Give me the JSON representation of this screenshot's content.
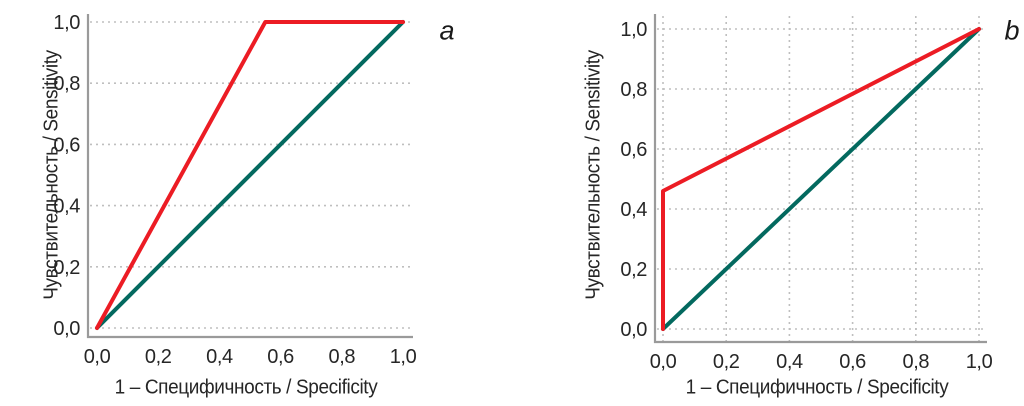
{
  "colors": {
    "roc_red": "#ec1c24",
    "diagonal_teal": "#03695f",
    "grid": "#bfbfbf",
    "axis": "#9a9a9a",
    "text": "#262626"
  },
  "chart_data": [
    {
      "panel_label": "a",
      "type": "line",
      "title": "",
      "xlabel": "1 – Специфичность / Specificity",
      "ylabel": "Чувствительность / Sensitivity",
      "xlim": [
        0,
        1
      ],
      "ylim": [
        0,
        1
      ],
      "tick_values": [
        0,
        0.2,
        0.4,
        0.6,
        0.8,
        1.0
      ],
      "x_tick_labels": [
        "0,0",
        "0,2",
        "0,4",
        "0,6",
        "0,8",
        "1,0"
      ],
      "y_tick_labels": [
        "0,0",
        "0,2",
        "0,4",
        "0,6",
        "0,8",
        "1,0"
      ],
      "grid": {
        "horizontal": true,
        "vertical": false,
        "style": "dotted"
      },
      "legend": "none",
      "series": [
        {
          "name": "roc-curve",
          "color_key": "roc_red",
          "points": [
            [
              0,
              0
            ],
            [
              0.55,
              1.0
            ],
            [
              1.0,
              1.0
            ]
          ]
        },
        {
          "name": "reference-diagonal",
          "color_key": "diagonal_teal",
          "points": [
            [
              0,
              0
            ],
            [
              1.0,
              1.0
            ]
          ]
        }
      ]
    },
    {
      "panel_label": "b",
      "type": "line",
      "title": "",
      "xlabel": "1 – Специфичность / Specificity",
      "ylabel": "Чувствительность / Sensitivity",
      "xlim": [
        0,
        1
      ],
      "ylim": [
        0,
        1
      ],
      "tick_values": [
        0,
        0.2,
        0.4,
        0.6,
        0.8,
        1.0
      ],
      "x_tick_labels": [
        "0,0",
        "0,2",
        "0,4",
        "0,6",
        "0,8",
        "1,0"
      ],
      "y_tick_labels": [
        "0,0",
        "0,2",
        "0,4",
        "0,6",
        "0,8",
        "1,0"
      ],
      "grid": {
        "horizontal": true,
        "vertical": true,
        "style": "dotted"
      },
      "legend": "none",
      "series": [
        {
          "name": "roc-curve",
          "color_key": "roc_red",
          "points": [
            [
              0,
              0
            ],
            [
              0,
              0.46
            ],
            [
              1.0,
              1.0
            ]
          ]
        },
        {
          "name": "reference-diagonal",
          "color_key": "diagonal_teal",
          "points": [
            [
              0,
              0
            ],
            [
              1.0,
              1.0
            ]
          ]
        }
      ]
    }
  ]
}
